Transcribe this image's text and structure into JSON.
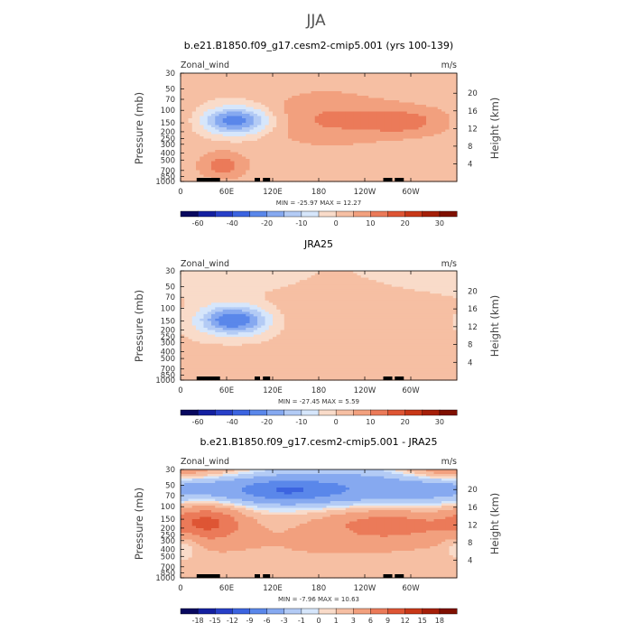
{
  "suptitle": "JJA",
  "chart_data": [
    {
      "type": "heatmap",
      "title": "b.e21.B1850.f09_g17.cesm2-cmip5.001 (yrs 100-139)",
      "variable": "Zonal_wind",
      "units": "m/s",
      "ylabel": "Pressure (mb)",
      "ylabel_right": "Height (km)",
      "xticks": [
        "0",
        "60E",
        "120E",
        "180",
        "120W",
        "60W"
      ],
      "yticks": [
        "30",
        "50",
        "70",
        "100",
        "150",
        "200",
        "250",
        "300",
        "400",
        "500",
        "700",
        "850",
        "1000"
      ],
      "yticks_right": [
        "20",
        "16",
        "12",
        "8",
        "4"
      ],
      "stats": "MIN =  -25.97   MAX =   12.27",
      "min": -25.97,
      "max": 12.27,
      "colorbar_labels": [
        "-60",
        "-40",
        "-20",
        "-10",
        "0",
        "10",
        "20",
        "30"
      ],
      "colors": [
        "#08085f",
        "#1420a0",
        "#2840c8",
        "#3c64e0",
        "#5a87ea",
        "#86a9f0",
        "#b3cbf5",
        "#d6e6fb",
        "#f9dbc9",
        "#f6bfa3",
        "#f2a07e",
        "#eb7a59",
        "#de5534",
        "#c83818",
        "#a51f08",
        "#7f1000"
      ],
      "features": [
        {
          "lon": 72,
          "lev": 140,
          "wlon": 32,
          "wlev": 0.32,
          "amp": -26
        },
        {
          "lon": 55,
          "lev": 600,
          "wlon": 25,
          "wlev": 0.35,
          "amp": 12
        },
        {
          "lon": 250,
          "lev": 140,
          "wlon": 110,
          "wlev": 0.55,
          "amp": 8
        },
        {
          "lon": 290,
          "lev": 145,
          "wlon": 30,
          "wlev": 0.25,
          "amp": 6
        },
        {
          "lon": 180,
          "lev": 100,
          "wlon": 60,
          "wlev": 1.2,
          "amp": 4
        }
      ]
    },
    {
      "type": "heatmap",
      "title": "JRA25",
      "variable": "Zonal_wind",
      "units": "m/s",
      "ylabel": "Pressure (mb)",
      "ylabel_right": "Height (km)",
      "xticks": [
        "0",
        "60E",
        "120E",
        "180",
        "120W",
        "60W"
      ],
      "yticks": [
        "30",
        "50",
        "70",
        "100",
        "150",
        "200",
        "250",
        "300",
        "400",
        "500",
        "700",
        "850",
        "1000"
      ],
      "yticks_right": [
        "20",
        "16",
        "12",
        "8",
        "4"
      ],
      "stats": "MIN =  -27.45   MAX =    5.59",
      "min": -27.45,
      "max": 5.59,
      "colorbar_labels": [
        "-60",
        "-40",
        "-20",
        "-10",
        "0",
        "10",
        "20",
        "30"
      ],
      "colors": [
        "#08085f",
        "#1420a0",
        "#2840c8",
        "#3c64e0",
        "#5a87ea",
        "#86a9f0",
        "#b3cbf5",
        "#d6e6fb",
        "#f9dbc9",
        "#f6bfa3",
        "#f2a07e",
        "#eb7a59",
        "#de5534",
        "#c83818",
        "#a51f08",
        "#7f1000"
      ],
      "features": [
        {
          "lon": 70,
          "lev": 145,
          "wlon": 32,
          "wlev": 0.33,
          "amp": -27
        },
        {
          "lon": 220,
          "lev": 110,
          "wlon": 100,
          "wlev": 0.7,
          "amp": 5
        },
        {
          "lon": 60,
          "lev": 600,
          "wlon": 40,
          "wlev": 0.4,
          "amp": 3
        },
        {
          "lon": 20,
          "lev": 40,
          "wlon": 100,
          "wlev": 0.4,
          "amp": -4
        }
      ]
    },
    {
      "type": "heatmap",
      "title": "b.e21.B1850.f09_g17.cesm2-cmip5.001 - JRA25",
      "variable": "Zonal_wind",
      "units": "m/s",
      "ylabel": "Pressure (mb)",
      "ylabel_right": "Height (km)",
      "xticks": [
        "0",
        "60E",
        "120E",
        "180",
        "120W",
        "60W"
      ],
      "yticks": [
        "30",
        "50",
        "70",
        "100",
        "150",
        "200",
        "250",
        "300",
        "400",
        "500",
        "700",
        "850",
        "1000"
      ],
      "yticks_right": [
        "20",
        "16",
        "12",
        "8",
        "4"
      ],
      "stats": "MIN =   -7.96   MAX =   10.63",
      "min": -7.96,
      "max": 10.63,
      "colorbar_labels": [
        "-18",
        "-15",
        "-12",
        "-9",
        "-6",
        "-3",
        "-1",
        "0",
        "1",
        "3",
        "6",
        "9",
        "12",
        "15",
        "18"
      ],
      "colors": [
        "#08085f",
        "#1420a0",
        "#2840c8",
        "#3c64e0",
        "#5a87ea",
        "#86a9f0",
        "#b3cbf5",
        "#d6e6fb",
        "#f9dbc9",
        "#f6bfa3",
        "#f2a07e",
        "#eb7a59",
        "#de5534",
        "#c83818",
        "#a51f08",
        "#7f1000"
      ],
      "features": [
        {
          "lon": 180,
          "lev": 58,
          "wlon": 260,
          "wlev": 0.45,
          "amp": -6
        },
        {
          "lon": 140,
          "lev": 60,
          "wlon": 40,
          "wlev": 0.25,
          "amp": -4
        },
        {
          "lon": 35,
          "lev": 160,
          "wlon": 35,
          "wlev": 0.45,
          "amp": 8
        },
        {
          "lon": 270,
          "lev": 170,
          "wlon": 60,
          "wlev": 0.4,
          "amp": 6
        },
        {
          "lon": 180,
          "lev": 350,
          "wlon": 200,
          "wlev": 0.9,
          "amp": 3
        },
        {
          "lon": 20,
          "lev": 30,
          "wlon": 60,
          "wlev": 0.25,
          "amp": 4
        },
        {
          "lon": 340,
          "lev": 30,
          "wlon": 40,
          "wlev": 0.25,
          "amp": 3
        },
        {
          "lon": 5,
          "lev": 350,
          "wlon": 15,
          "wlev": 0.3,
          "amp": -3
        }
      ]
    }
  ]
}
